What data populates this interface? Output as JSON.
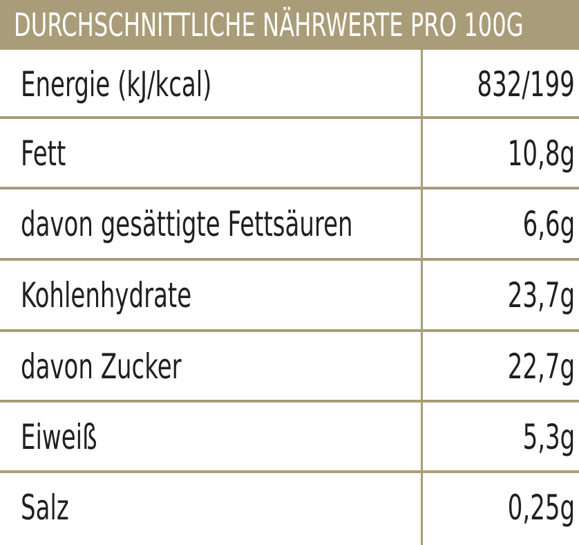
{
  "colors": {
    "accent": "#a99c78",
    "text": "#1f1f1f",
    "header_text": "#ffffff",
    "background": "#ffffff"
  },
  "header": {
    "title": "DURCHSCHNITTLICHE NÄHRWERTE PRO 100G"
  },
  "table": {
    "rows": [
      {
        "label": "Energie (kJ/kcal)",
        "value": "832/199"
      },
      {
        "label": "Fett",
        "value": "10,8g"
      },
      {
        "label": "davon gesättigte Fettsäuren",
        "value": "6,6g"
      },
      {
        "label": "Kohlenhydrate",
        "value": "23,7g"
      },
      {
        "label": "davon Zucker",
        "value": "22,7g"
      },
      {
        "label": "Eiweiß",
        "value": "5,3g"
      },
      {
        "label": "Salz",
        "value": "0,25g"
      }
    ]
  }
}
